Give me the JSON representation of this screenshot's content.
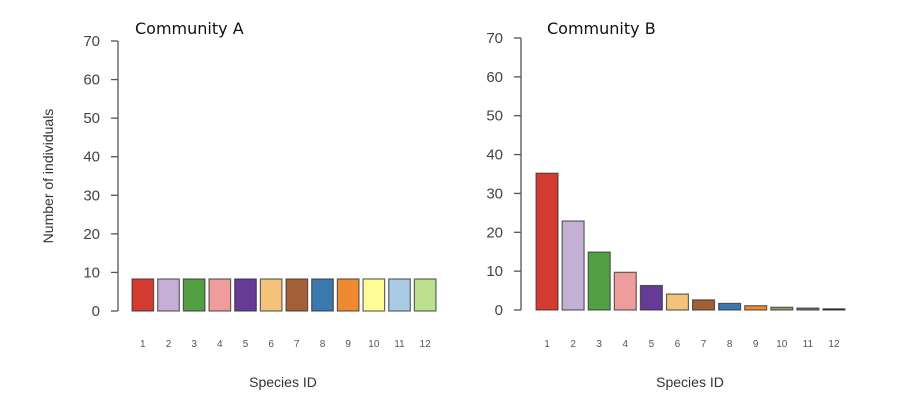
{
  "chart_data": [
    {
      "type": "bar",
      "title": "Community A",
      "xlabel": "Species ID",
      "ylabel": "Number of individuals",
      "ylim": [
        0,
        70
      ],
      "yticks": [
        0,
        10,
        20,
        30,
        40,
        50,
        60,
        70
      ],
      "grid": false,
      "categories": [
        "1",
        "2",
        "3",
        "4",
        "5",
        "6",
        "7",
        "8",
        "9",
        "10",
        "11",
        "12"
      ],
      "values": [
        8.3,
        8.3,
        8.3,
        8.3,
        8.3,
        8.3,
        8.3,
        8.3,
        8.3,
        8.3,
        8.3,
        8.3
      ],
      "colors": [
        "#d33a30",
        "#c5b0d5",
        "#52a043",
        "#ee9c9c",
        "#653b95",
        "#f4c27a",
        "#a35f35",
        "#3b78b0",
        "#ef8a33",
        "#fefe99",
        "#a9cbe3",
        "#bde08f"
      ]
    },
    {
      "type": "bar",
      "title": "Community B",
      "xlabel": "Species ID",
      "ylabel": "",
      "ylim": [
        0,
        70
      ],
      "yticks": [
        0,
        10,
        20,
        30,
        40,
        50,
        60,
        70
      ],
      "grid": false,
      "categories": [
        "1",
        "2",
        "3",
        "4",
        "5",
        "6",
        "7",
        "8",
        "9",
        "10",
        "11",
        "12"
      ],
      "values": [
        35.2,
        22.9,
        14.9,
        9.7,
        6.3,
        4.1,
        2.6,
        1.7,
        1.1,
        0.7,
        0.5,
        0.3
      ],
      "colors": [
        "#d33a30",
        "#c5b0d5",
        "#52a043",
        "#ee9c9c",
        "#653b95",
        "#f4c27a",
        "#a35f35",
        "#3b78b0",
        "#ef8a33",
        "#9a9a6a",
        "#6f7f8a",
        "#222222"
      ]
    }
  ]
}
